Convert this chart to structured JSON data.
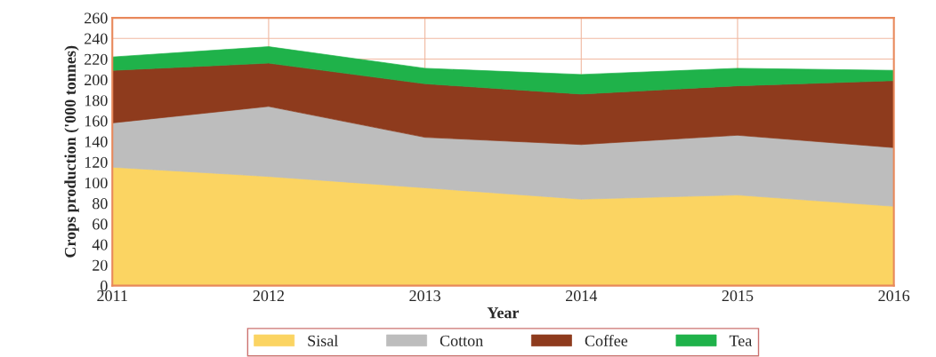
{
  "chart_data": {
    "type": "area",
    "stacked": true,
    "xlabel": "Year",
    "ylabel": "Crops production ('000 tonnes)",
    "x": [
      2011,
      2012,
      2013,
      2014,
      2015,
      2016
    ],
    "series": [
      {
        "name": "Sisal",
        "color": "#fbd462",
        "values": [
          115,
          106,
          95,
          84,
          88,
          77
        ]
      },
      {
        "name": "Cotton",
        "color": "#bdbdbd",
        "values": [
          43,
          68,
          49,
          53,
          58,
          57
        ]
      },
      {
        "name": "Coffee",
        "color": "#8e3b1d",
        "values": [
          51,
          42,
          52,
          49,
          48,
          65
        ]
      },
      {
        "name": "Tea",
        "color": "#1fb24a",
        "values": [
          13,
          16,
          15,
          19,
          17,
          10
        ]
      }
    ],
    "xlim": [
      2011,
      2016
    ],
    "xticks": [
      2011,
      2012,
      2013,
      2014,
      2015,
      2016
    ],
    "ylim": [
      0,
      260
    ],
    "yticks": [
      0,
      20,
      40,
      60,
      80,
      100,
      120,
      140,
      160,
      180,
      200,
      220,
      240,
      260
    ],
    "grid": true,
    "legend": "bottom"
  }
}
